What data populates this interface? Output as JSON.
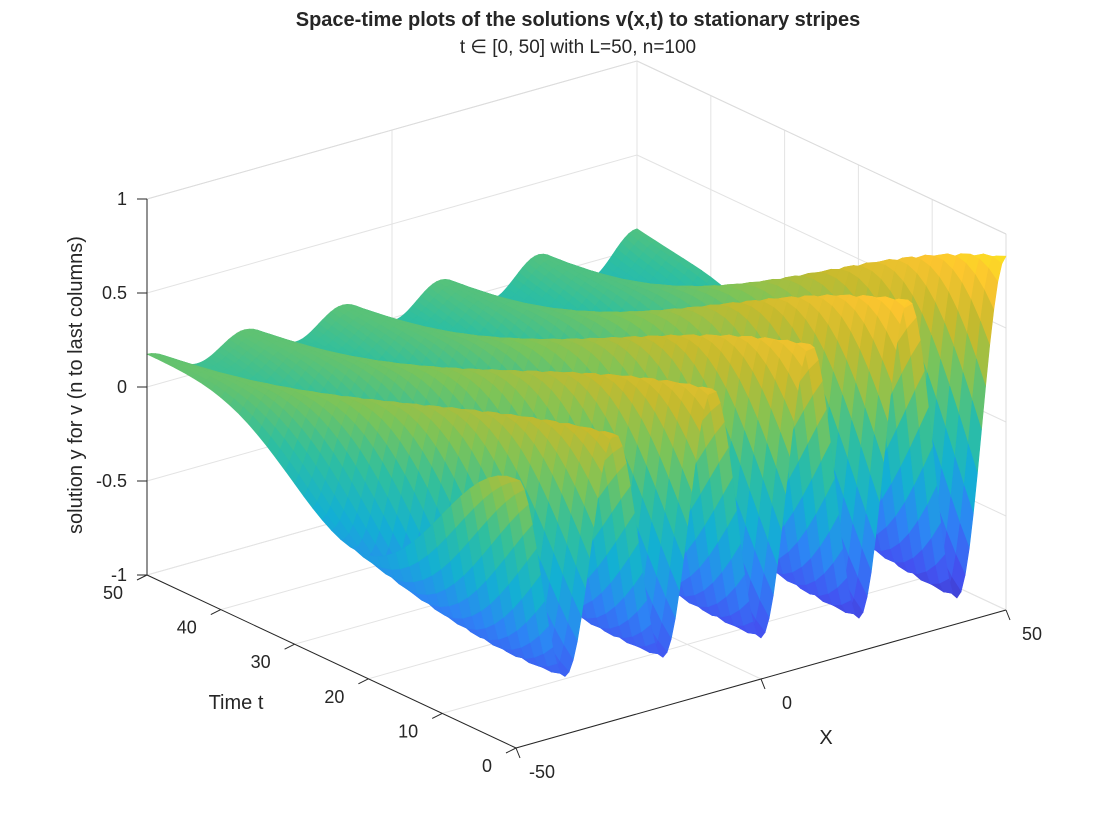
{
  "chart_data": {
    "type": "surface",
    "title": "Space-time plots of the solutions v(x,t) to stationary stripes",
    "subtitle": "t ∈ [0, 50] with L=50, n=100",
    "xlabel": "X",
    "ylabel": "Time t",
    "zlabel": "solution y for v (n to last columns)",
    "xlim": [
      -50,
      50
    ],
    "ylim": [
      0,
      50
    ],
    "zlim": [
      -1,
      1
    ],
    "x_ticks": [
      "-50",
      "0",
      "50"
    ],
    "y_ticks": [
      "0",
      "10",
      "20",
      "30",
      "40",
      "50"
    ],
    "z_ticks": [
      "-1",
      "-0.5",
      "0",
      "0.5",
      "1"
    ],
    "grid": true,
    "colormap": "parula",
    "colormap_stops": [
      "#3e26a8",
      "#4353f2",
      "#2d85f5",
      "#13b0d3",
      "#2fbf9f",
      "#7bc459",
      "#c6ba2d",
      "#fdc52f",
      "#f9fb15"
    ],
    "surface_samples": {
      "x": [
        -50,
        -40,
        -30,
        -20,
        -10,
        0,
        10,
        20,
        30,
        40,
        50
      ],
      "t": [
        0,
        25,
        50
      ],
      "v_at_t0": [
        -0.3,
        -0.9,
        -0.2,
        -0.8,
        -0.2,
        -0.7,
        -0.1,
        -0.7,
        -0.2,
        -0.7,
        -0.6
      ],
      "v_at_t25": [
        -0.7,
        0.3,
        -0.7,
        0.4,
        -0.7,
        0.5,
        -0.6,
        0.6,
        -0.6,
        0.6,
        -0.6
      ],
      "v_at_t50": [
        0.3,
        -0.1,
        0.3,
        0.0,
        0.4,
        0.1,
        0.5,
        0.2,
        0.6,
        0.7,
        0.3
      ]
    }
  }
}
